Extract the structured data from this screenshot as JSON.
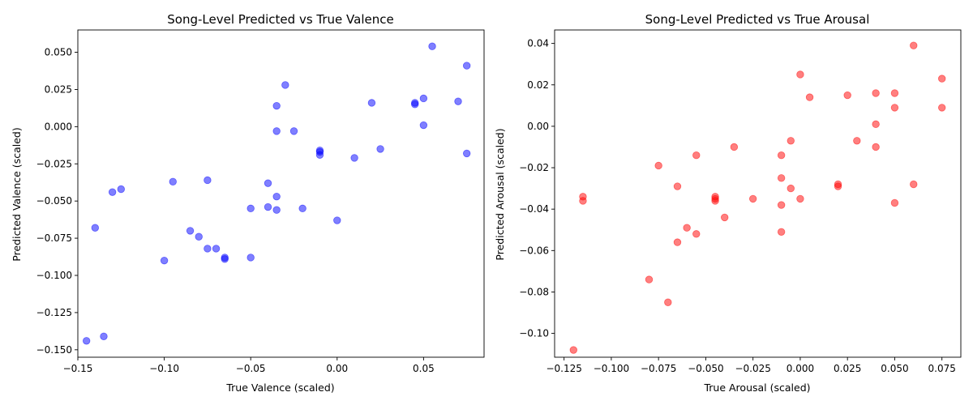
{
  "chart_data": [
    {
      "type": "scatter",
      "title": "Song-Level Predicted vs True Valence",
      "xlabel": "True Valence (scaled)",
      "ylabel": "Predicted Valence (scaled)",
      "xlim": [
        -0.15,
        0.085
      ],
      "ylim": [
        -0.155,
        0.065
      ],
      "xticks": [
        -0.15,
        -0.1,
        -0.05,
        0.0,
        0.05
      ],
      "xtick_labels": [
        "−0.15",
        "−0.10",
        "−0.05",
        "0.00",
        "0.05"
      ],
      "yticks": [
        -0.15,
        -0.125,
        -0.1,
        -0.075,
        -0.05,
        -0.025,
        0.0,
        0.025,
        0.05
      ],
      "ytick_labels": [
        "−0.150",
        "−0.125",
        "−0.100",
        "−0.075",
        "−0.050",
        "−0.025",
        "0.000",
        "0.025",
        "0.050"
      ],
      "color": "#0000ff",
      "grid": false,
      "points": [
        {
          "x": 0.055,
          "y": 0.054
        },
        {
          "x": 0.075,
          "y": 0.041
        },
        {
          "x": -0.03,
          "y": 0.028
        },
        {
          "x": 0.05,
          "y": 0.019
        },
        {
          "x": 0.045,
          "y": 0.016
        },
        {
          "x": 0.045,
          "y": 0.015
        },
        {
          "x": 0.02,
          "y": 0.016
        },
        {
          "x": 0.07,
          "y": 0.017
        },
        {
          "x": -0.035,
          "y": 0.014
        },
        {
          "x": 0.05,
          "y": 0.001
        },
        {
          "x": -0.035,
          "y": -0.003
        },
        {
          "x": -0.025,
          "y": -0.003
        },
        {
          "x": -0.01,
          "y": -0.016
        },
        {
          "x": -0.01,
          "y": -0.017
        },
        {
          "x": -0.01,
          "y": -0.019
        },
        {
          "x": 0.025,
          "y": -0.015
        },
        {
          "x": 0.075,
          "y": -0.018
        },
        {
          "x": 0.01,
          "y": -0.021
        },
        {
          "x": -0.075,
          "y": -0.036
        },
        {
          "x": -0.095,
          "y": -0.037
        },
        {
          "x": -0.04,
          "y": -0.038
        },
        {
          "x": -0.125,
          "y": -0.042
        },
        {
          "x": -0.13,
          "y": -0.044
        },
        {
          "x": -0.035,
          "y": -0.047
        },
        {
          "x": -0.04,
          "y": -0.054
        },
        {
          "x": -0.05,
          "y": -0.055
        },
        {
          "x": -0.02,
          "y": -0.055
        },
        {
          "x": -0.035,
          "y": -0.056
        },
        {
          "x": 0.0,
          "y": -0.063
        },
        {
          "x": -0.14,
          "y": -0.068
        },
        {
          "x": -0.085,
          "y": -0.07
        },
        {
          "x": -0.08,
          "y": -0.074
        },
        {
          "x": -0.075,
          "y": -0.082
        },
        {
          "x": -0.07,
          "y": -0.082
        },
        {
          "x": -0.065,
          "y": -0.088
        },
        {
          "x": -0.065,
          "y": -0.089
        },
        {
          "x": -0.05,
          "y": -0.088
        },
        {
          "x": -0.1,
          "y": -0.09
        },
        {
          "x": -0.135,
          "y": -0.141
        },
        {
          "x": -0.145,
          "y": -0.144
        }
      ]
    },
    {
      "type": "scatter",
      "title": "Song-Level Predicted vs True Arousal",
      "xlabel": "True Arousal (scaled)",
      "ylabel": "Predicted Arousal (scaled)",
      "xlim": [
        -0.13,
        0.085
      ],
      "ylim": [
        -0.1115,
        0.0465
      ],
      "xticks": [
        -0.125,
        -0.1,
        -0.075,
        -0.05,
        -0.025,
        0.0,
        0.025,
        0.05,
        0.075
      ],
      "xtick_labels": [
        "−0.125",
        "−0.100",
        "−0.075",
        "−0.050",
        "−0.025",
        "0.000",
        "0.025",
        "0.050",
        "0.075"
      ],
      "yticks": [
        -0.1,
        -0.08,
        -0.06,
        -0.04,
        -0.02,
        0.0,
        0.02,
        0.04
      ],
      "ytick_labels": [
        "−0.10",
        "−0.08",
        "−0.06",
        "−0.04",
        "−0.02",
        "0.00",
        "0.02",
        "0.04"
      ],
      "color": "#ff0000",
      "grid": false,
      "points": [
        {
          "x": 0.06,
          "y": 0.039
        },
        {
          "x": 0.0,
          "y": 0.025
        },
        {
          "x": 0.075,
          "y": 0.023
        },
        {
          "x": 0.025,
          "y": 0.015
        },
        {
          "x": 0.04,
          "y": 0.016
        },
        {
          "x": 0.05,
          "y": 0.016
        },
        {
          "x": 0.005,
          "y": 0.014
        },
        {
          "x": 0.05,
          "y": 0.009
        },
        {
          "x": 0.075,
          "y": 0.009
        },
        {
          "x": 0.04,
          "y": 0.001
        },
        {
          "x": -0.005,
          "y": -0.007
        },
        {
          "x": 0.03,
          "y": -0.007
        },
        {
          "x": -0.035,
          "y": -0.01
        },
        {
          "x": 0.04,
          "y": -0.01
        },
        {
          "x": -0.055,
          "y": -0.014
        },
        {
          "x": -0.01,
          "y": -0.014
        },
        {
          "x": -0.075,
          "y": -0.019
        },
        {
          "x": -0.01,
          "y": -0.025
        },
        {
          "x": -0.065,
          "y": -0.029
        },
        {
          "x": -0.005,
          "y": -0.03
        },
        {
          "x": 0.02,
          "y": -0.028
        },
        {
          "x": 0.02,
          "y": -0.029
        },
        {
          "x": 0.06,
          "y": -0.028
        },
        {
          "x": -0.115,
          "y": -0.034
        },
        {
          "x": -0.115,
          "y": -0.036
        },
        {
          "x": -0.045,
          "y": -0.034
        },
        {
          "x": -0.045,
          "y": -0.035
        },
        {
          "x": -0.045,
          "y": -0.036
        },
        {
          "x": -0.025,
          "y": -0.035
        },
        {
          "x": 0.0,
          "y": -0.035
        },
        {
          "x": 0.05,
          "y": -0.037
        },
        {
          "x": -0.01,
          "y": -0.038
        },
        {
          "x": -0.04,
          "y": -0.044
        },
        {
          "x": -0.06,
          "y": -0.049
        },
        {
          "x": -0.01,
          "y": -0.051
        },
        {
          "x": -0.055,
          "y": -0.052
        },
        {
          "x": -0.065,
          "y": -0.056
        },
        {
          "x": -0.08,
          "y": -0.074
        },
        {
          "x": -0.07,
          "y": -0.085
        },
        {
          "x": -0.12,
          "y": -0.108
        }
      ]
    }
  ]
}
